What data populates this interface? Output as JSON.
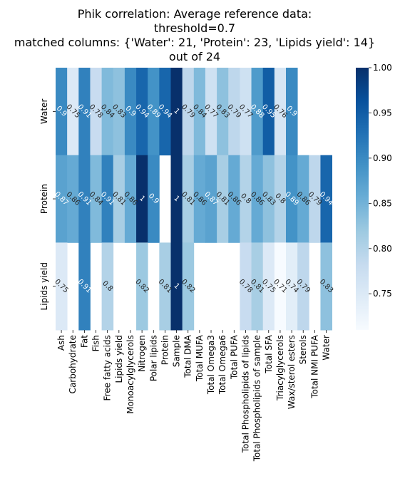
{
  "chart_data": {
    "type": "heatmap",
    "title_lines": [
      "Phik correlation: Average reference data:",
      "threshold=0.7",
      "matched columns: {'Water': 21, 'Protein': 23, 'Lipids yield': 14}",
      "out of 24"
    ],
    "rows": [
      "Water",
      "Protein",
      "Lipids yield"
    ],
    "columns": [
      "Ash",
      "Carbohydrate",
      "Fat",
      "Fish",
      "Free fatty acids",
      "Lipids yield",
      "Monoacylglycerols",
      "Nitrogen",
      "Polar lipids",
      "Protein",
      "Sample",
      "Total DMA",
      "Total MUFA",
      "Total Omega3",
      "Total Omega6",
      "Total PUFA",
      "Total Phospholipids of lipids",
      "Total Phospholipids of sample",
      "Total SFA",
      "Triacylglycerols",
      "Wax/sterol esters",
      "Sterols",
      "Total NMI PUFA",
      "Water"
    ],
    "values": [
      [
        0.9,
        0.75,
        0.91,
        0.78,
        0.84,
        0.83,
        0.9,
        0.94,
        0.89,
        0.94,
        1,
        0.79,
        0.84,
        0.77,
        0.83,
        0.79,
        0.77,
        0.88,
        0.95,
        0.76,
        0.9,
        null,
        null,
        null
      ],
      [
        0.87,
        0.86,
        0.91,
        0.84,
        0.91,
        0.81,
        0.86,
        1,
        0.9,
        null,
        1,
        0.81,
        0.86,
        0.87,
        0.81,
        0.86,
        0.8,
        0.86,
        0.83,
        0.8,
        0.89,
        0.86,
        0.79,
        0.94
      ],
      [
        0.75,
        null,
        0.91,
        null,
        0.8,
        null,
        null,
        0.82,
        null,
        0.81,
        1,
        0.82,
        null,
        null,
        null,
        null,
        0.78,
        0.81,
        0.75,
        0.71,
        0.74,
        0.79,
        null,
        0.83
      ]
    ],
    "cell_labels": [
      [
        "0.9",
        "0.75",
        "0.91",
        "0.78",
        "0.84",
        "0.83",
        "0.9",
        "0.94",
        "0.89",
        "0.94",
        "1",
        "0.79",
        "0.84",
        "0.77",
        "0.83",
        "0.79",
        "0.77",
        "0.88",
        "0.95",
        "0.76",
        "0.9",
        "",
        "",
        ""
      ],
      [
        "0.87",
        "0.86",
        "0.91",
        "0.84",
        "0.91",
        "0.81",
        "0.86",
        "1",
        "0.9",
        "",
        "1",
        "0.81",
        "0.86",
        "0.87",
        "0.81",
        "0.86",
        "0.8",
        "0.86",
        "0.83",
        "0.8",
        "0.89",
        "0.86",
        "0.79",
        "0.94"
      ],
      [
        "0.75",
        "",
        "0.91",
        "",
        "0.8",
        "",
        "",
        "0.82",
        "",
        "0.81",
        "1",
        "0.82",
        "",
        "",
        "",
        "",
        "0.78",
        "0.81",
        "0.75",
        "0.71",
        "0.74",
        "0.79",
        "",
        "0.83"
      ]
    ],
    "colorbar": {
      "colormap": "Blues",
      "range": [
        0.71,
        1.0
      ],
      "ticks": [
        0.75,
        0.8,
        0.85,
        0.9,
        0.95,
        1.0
      ],
      "tick_labels": [
        "0.75",
        "0.80",
        "0.85",
        "0.90",
        "0.95",
        "1.00"
      ]
    },
    "cell_label_rotation": "45 degrees",
    "missing_cells": "blank white",
    "grid": false
  }
}
